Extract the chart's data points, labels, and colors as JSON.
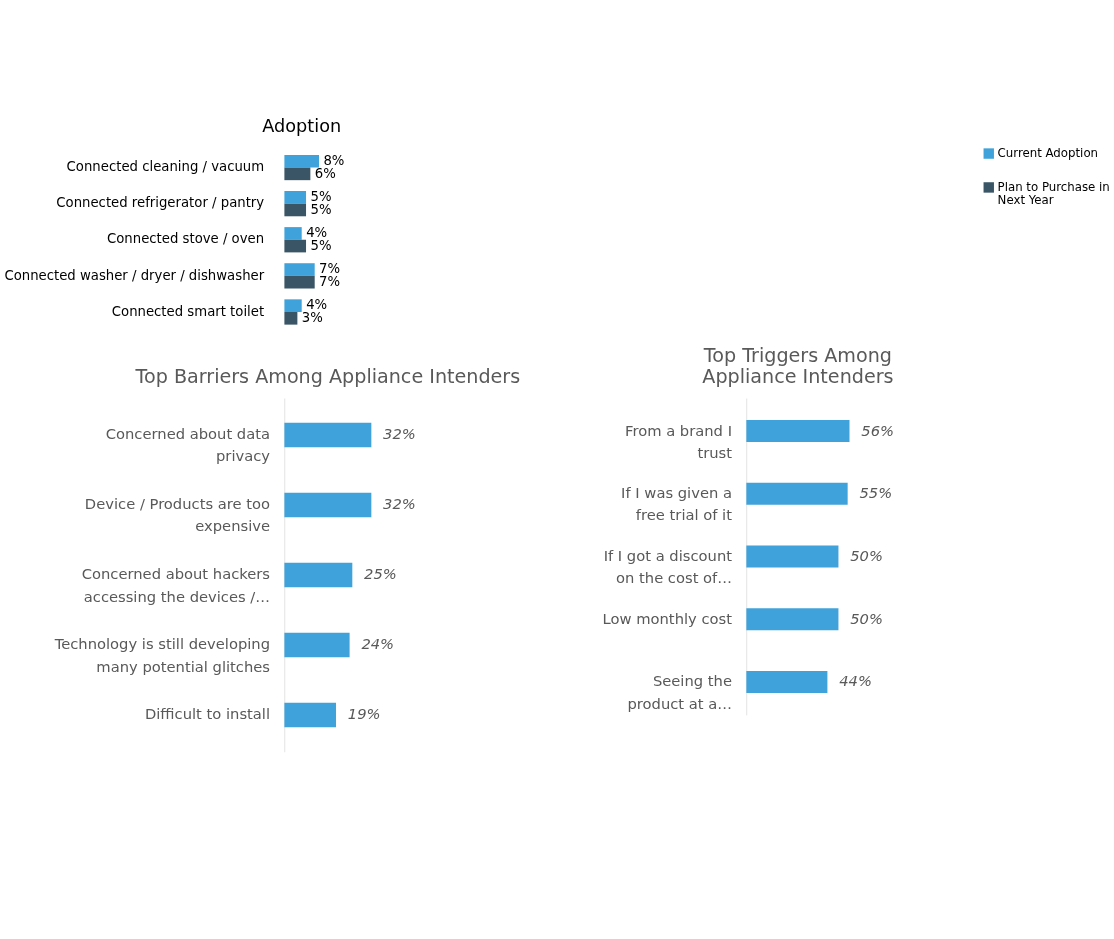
{
  "chart_data": [
    {
      "type": "bar",
      "orientation": "horizontal",
      "title": "Adoption",
      "categories": [
        "Connected cleaning / vacuum",
        "Connected refrigerator / pantry",
        "Connected stove / oven",
        "Connected washer / dryer / dishwasher",
        "Connected smart toilet"
      ],
      "series": [
        {
          "name": "Current Adoption",
          "color": "#3fa2da",
          "values": [
            8,
            5,
            4,
            7,
            4
          ],
          "value_labels": [
            "8%",
            "5%",
            "4%",
            "7%",
            "4%"
          ]
        },
        {
          "name": "Plan to Purchase in Next Year",
          "color": "#3a5566",
          "values": [
            6,
            5,
            5,
            7,
            3
          ],
          "value_labels": [
            "6%",
            "5%",
            "5%",
            "7%",
            "3%"
          ]
        }
      ],
      "tick_labels": "y",
      "legend": "right",
      "grid": false
    },
    {
      "type": "bar",
      "orientation": "horizontal",
      "title": "Top Barriers Among Appliance Intenders",
      "categories": [
        "Concerned about data\nprivacy",
        "Device / Products are too\nexpensive",
        "Concerned about hackers\naccessing the devices /…",
        "Technology is still developing\nmany potential glitches",
        "Difficult to install"
      ],
      "series": [
        {
          "color": "#41a4dc",
          "values": [
            32,
            32,
            25,
            24,
            19
          ],
          "value_labels": [
            "32%",
            "32%",
            "25%",
            "24%",
            "19%"
          ]
        }
      ],
      "tick_labels": "y",
      "grid": false
    },
    {
      "type": "bar",
      "orientation": "horizontal",
      "title": "Top Triggers Among\nAppliance Intenders",
      "categories": [
        "From a brand I\ntrust",
        "If I was given a\nfree trial of it",
        "If I got a discount\non the cost of…",
        "Low monthly cost",
        "Seeing the\nproduct at a…"
      ],
      "series": [
        {
          "color": "#41a4dc",
          "values": [
            56,
            55,
            50,
            50,
            44
          ],
          "value_labels": [
            "56%",
            "55%",
            "50%",
            "50%",
            "44%"
          ]
        }
      ],
      "tick_labels": "y",
      "grid": false
    }
  ]
}
